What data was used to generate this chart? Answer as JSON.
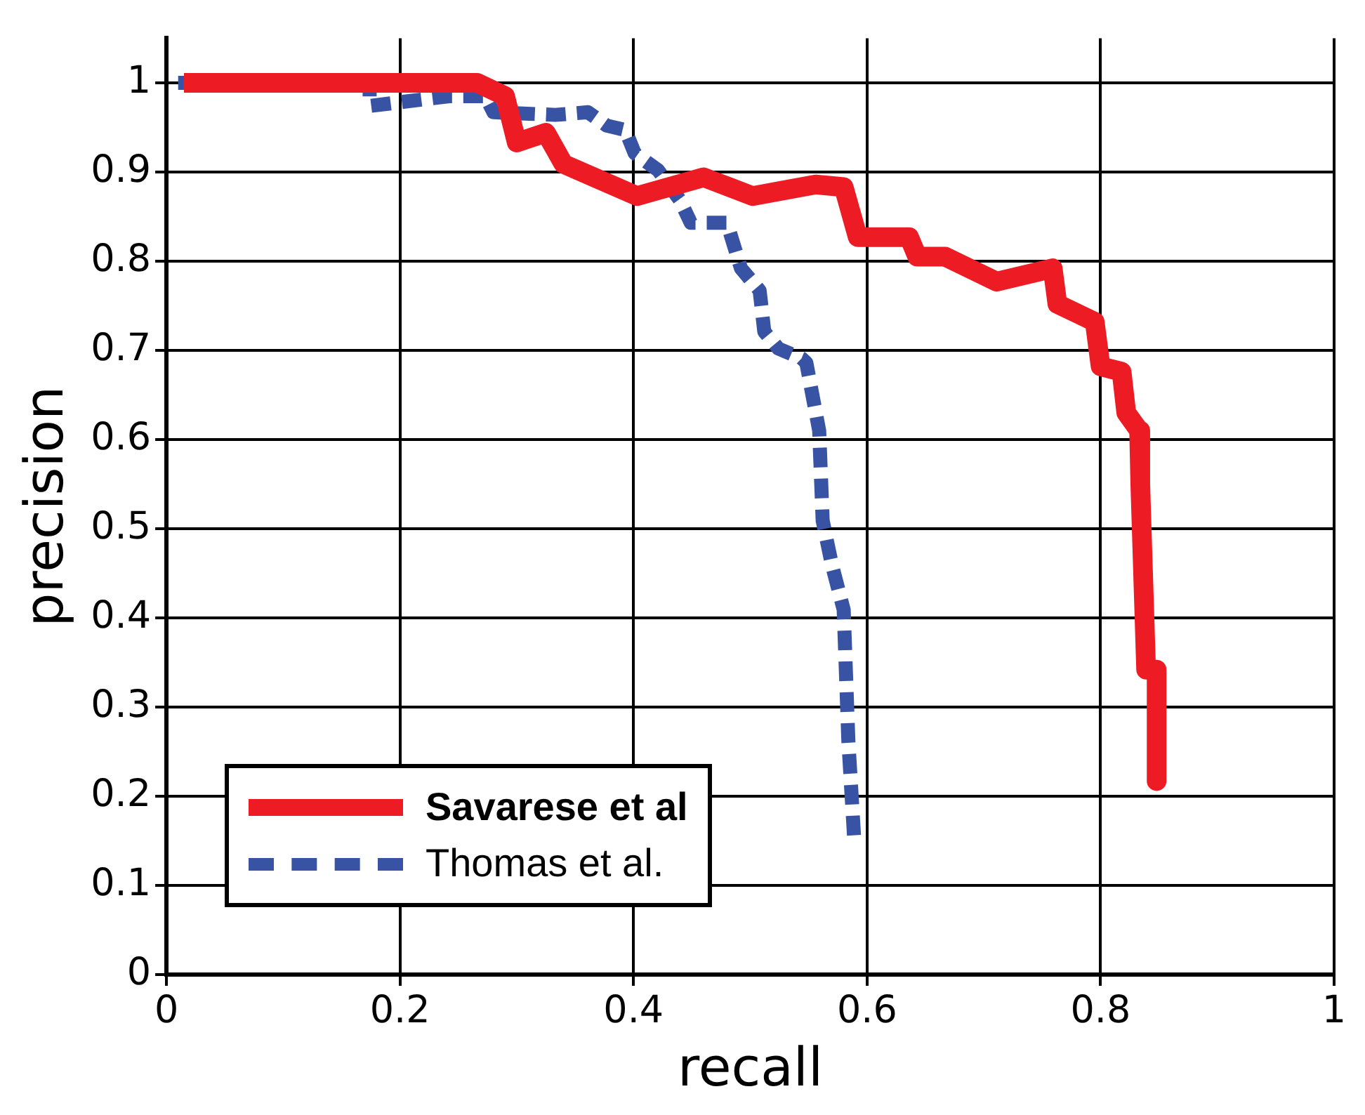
{
  "chart_data": {
    "type": "line",
    "xlabel": "recall",
    "ylabel": "precision",
    "xlim": [
      0,
      1
    ],
    "ylim": [
      0,
      1.05
    ],
    "xticks": [
      0,
      0.2,
      0.4,
      0.6,
      0.8,
      1
    ],
    "yticks": [
      0,
      0.1,
      0.2,
      0.3,
      0.4,
      0.5,
      0.6,
      0.7,
      0.8,
      0.9,
      1
    ],
    "grid": true,
    "legend": "bottom left",
    "marker": "none",
    "series": [
      {
        "name": "Savarese et al",
        "color": "#ed1c24",
        "line_style": "solid",
        "x": [
          0.015,
          0.266,
          0.29,
          0.3,
          0.325,
          0.34,
          0.403,
          0.46,
          0.502,
          0.556,
          0.58,
          0.592,
          0.636,
          0.643,
          0.667,
          0.711,
          0.759,
          0.763,
          0.795,
          0.8,
          0.818,
          0.822,
          0.833,
          0.834,
          0.839,
          0.848,
          0.848
        ],
        "values": [
          1.0,
          1.0,
          0.985,
          0.933,
          0.944,
          0.909,
          0.873,
          0.894,
          0.873,
          0.886,
          0.883,
          0.827,
          0.827,
          0.805,
          0.805,
          0.777,
          0.792,
          0.752,
          0.732,
          0.682,
          0.676,
          0.63,
          0.61,
          0.55,
          0.342,
          0.342,
          0.217
        ]
      },
      {
        "name": "Thomas et al.",
        "color": "#3953a4",
        "line_style": "dashed",
        "x": [
          0.01,
          0.174,
          0.174,
          0.242,
          0.273,
          0.28,
          0.333,
          0.361,
          0.377,
          0.393,
          0.401,
          0.421,
          0.44,
          0.449,
          0.48,
          0.492,
          0.508,
          0.512,
          0.524,
          0.544,
          0.548,
          0.559,
          0.562,
          0.57,
          0.58,
          0.584,
          0.589
        ],
        "values": [
          1.0,
          1.0,
          0.974,
          0.985,
          0.985,
          0.967,
          0.964,
          0.967,
          0.952,
          0.947,
          0.921,
          0.902,
          0.868,
          0.843,
          0.843,
          0.792,
          0.767,
          0.721,
          0.702,
          0.691,
          0.686,
          0.61,
          0.509,
          0.459,
          0.409,
          0.262,
          0.152
        ]
      }
    ]
  }
}
